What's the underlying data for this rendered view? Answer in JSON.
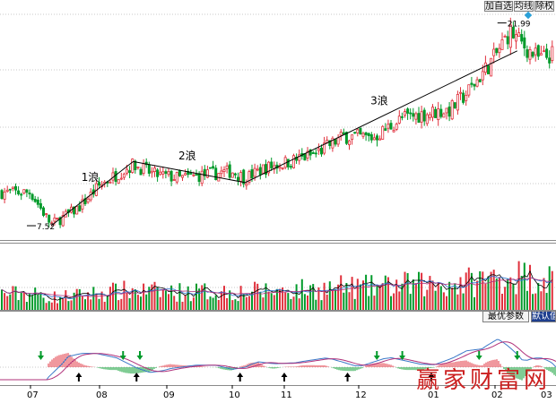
{
  "toolbar": {
    "buttons": [
      "加自选",
      "均线",
      "除权"
    ]
  },
  "indicator_buttons": [
    "最优参数",
    "默认值"
  ],
  "watermark": "赢家财富网",
  "colors": {
    "up": "#e0303c",
    "down": "#009a2a",
    "trend_line": "#000000",
    "grid": "#c8c8c8",
    "macd_dif": "#3a78c8",
    "macd_dea": "#b0307a"
  },
  "chart_data": [
    {
      "type": "candlestick",
      "x_ticks": [
        "07",
        "08",
        "09",
        "10",
        "11",
        "12",
        "01",
        "02",
        "03"
      ],
      "ylim": [
        6.5,
        23.5
      ],
      "grid": true,
      "annotations": {
        "low": {
          "label": "7.52",
          "value": 7.52,
          "month": "07"
        },
        "high": {
          "label": "21.99",
          "value": 21.99,
          "month": "02"
        },
        "waves": [
          {
            "label": "1浪",
            "start": {
              "t": 0.3,
              "v": 7.52
            },
            "end": {
              "t": 1.5,
              "v": 12.1
            }
          },
          {
            "label": "2浪",
            "start": {
              "t": 1.5,
              "v": 12.1
            },
            "end": {
              "t": 3.25,
              "v": 10.6
            }
          },
          {
            "label": "3浪",
            "start": {
              "t": 3.25,
              "v": 10.6
            },
            "end": {
              "t": 7.45,
              "v": 20.0
            }
          }
        ]
      },
      "candles": {
        "close_path": [
          [
            0.0,
            9.9
          ],
          [
            0.3,
            7.6
          ],
          [
            0.7,
            8.8
          ],
          [
            1.0,
            10.4
          ],
          [
            1.5,
            11.9
          ],
          [
            1.8,
            11.2
          ],
          [
            2.2,
            10.9
          ],
          [
            2.5,
            11.1
          ],
          [
            3.0,
            11.4
          ],
          [
            3.25,
            10.9
          ],
          [
            3.6,
            11.6
          ],
          [
            4.0,
            12.0
          ],
          [
            4.4,
            12.6
          ],
          [
            4.8,
            13.9
          ],
          [
            5.2,
            13.8
          ],
          [
            5.6,
            15.2
          ],
          [
            6.0,
            15.6
          ],
          [
            6.3,
            15.8
          ],
          [
            6.6,
            17.2
          ],
          [
            7.0,
            19.6
          ],
          [
            7.3,
            21.4
          ],
          [
            7.6,
            20.3
          ],
          [
            7.9,
            19.4
          ],
          [
            8.2,
            19.8
          ],
          [
            8.45,
            19.6
          ]
        ]
      }
    },
    {
      "type": "bar",
      "name": "volume",
      "note_series": [
        "volume bars",
        "MA line 1",
        "MA line 2"
      ]
    },
    {
      "type": "macd",
      "signals": {
        "buy_months": [
          0.7,
          1.55,
          3.15,
          4.0,
          4.85,
          6.0
        ],
        "sell_months": [
          0.15,
          1.35,
          1.6,
          5.25,
          5.6,
          6.75,
          7.45
        ]
      }
    }
  ]
}
